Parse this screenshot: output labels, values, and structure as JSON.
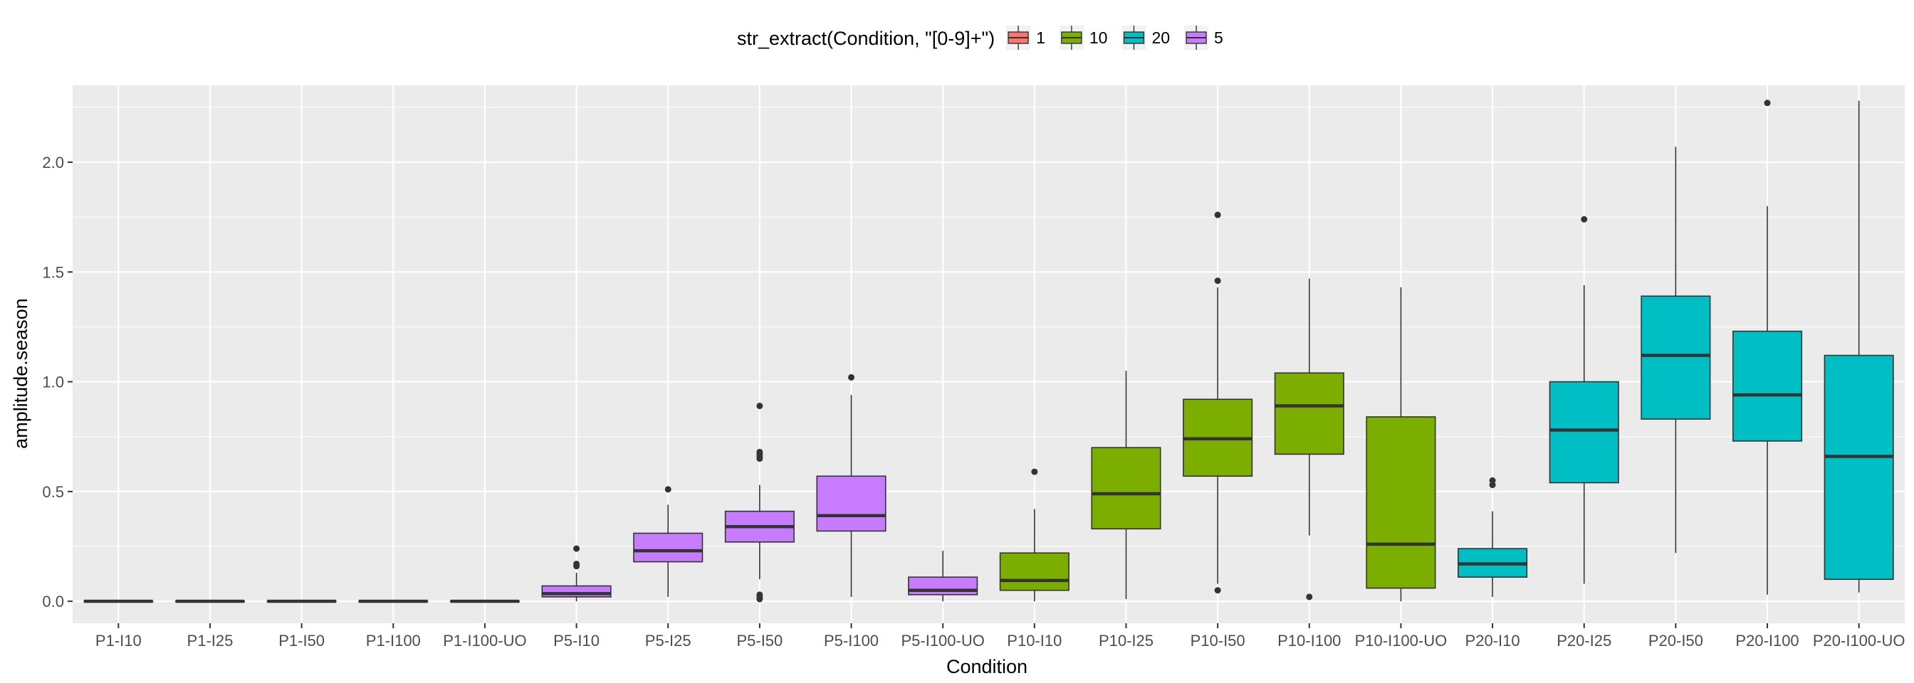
{
  "chart_data": {
    "type": "boxplot",
    "xlabel": "Condition",
    "ylabel": "amplitude.season",
    "ylim": [
      -0.1,
      2.35
    ],
    "yticks": [
      "0.0",
      "0.5",
      "1.0",
      "1.5",
      "2.0"
    ],
    "legend": {
      "title": "str_extract(Condition, \"[0-9]+\")",
      "position": "top",
      "entries": [
        {
          "label": "1",
          "color": "#F8766D"
        },
        {
          "label": "10",
          "color": "#7CAE00"
        },
        {
          "label": "20",
          "color": "#00BFC4"
        },
        {
          "label": "5",
          "color": "#C77CFF"
        }
      ]
    },
    "colors": {
      "panel_bg": "#EBEBEB",
      "grid": "#FFFFFF",
      "box_outline": "#333333",
      "median": "#333333"
    },
    "categories": [
      "P1-I10",
      "P1-I25",
      "P1-I50",
      "P1-I100",
      "P1-I100-UO",
      "P5-I10",
      "P5-I25",
      "P5-I50",
      "P5-I100",
      "P5-I100-UO",
      "P10-I10",
      "P10-I25",
      "P10-I50",
      "P10-I100",
      "P10-I100-UO",
      "P20-I10",
      "P20-I25",
      "P20-I50",
      "P20-I100",
      "P20-I100-UO"
    ],
    "boxes": [
      {
        "group": "1",
        "q1": 0.0,
        "median": 0.0,
        "q3": 0.0,
        "whisker_low": 0.0,
        "whisker_high": 0.0,
        "outliers": []
      },
      {
        "group": "1",
        "q1": 0.0,
        "median": 0.0,
        "q3": 0.0,
        "whisker_low": 0.0,
        "whisker_high": 0.0,
        "outliers": []
      },
      {
        "group": "1",
        "q1": 0.0,
        "median": 0.0,
        "q3": 0.0,
        "whisker_low": 0.0,
        "whisker_high": 0.0,
        "outliers": []
      },
      {
        "group": "1",
        "q1": 0.0,
        "median": 0.0,
        "q3": 0.0,
        "whisker_low": 0.0,
        "whisker_high": 0.0,
        "outliers": []
      },
      {
        "group": "1",
        "q1": 0.0,
        "median": 0.0,
        "q3": 0.0,
        "whisker_low": 0.0,
        "whisker_high": 0.0,
        "outliers": []
      },
      {
        "group": "5",
        "q1": 0.02,
        "median": 0.035,
        "q3": 0.07,
        "whisker_low": 0.0,
        "whisker_high": 0.13,
        "outliers": [
          0.16,
          0.17,
          0.24
        ]
      },
      {
        "group": "5",
        "q1": 0.18,
        "median": 0.23,
        "q3": 0.31,
        "whisker_low": 0.02,
        "whisker_high": 0.44,
        "outliers": [
          0.51
        ]
      },
      {
        "group": "5",
        "q1": 0.27,
        "median": 0.34,
        "q3": 0.41,
        "whisker_low": 0.1,
        "whisker_high": 0.53,
        "outliers": [
          0.01,
          0.02,
          0.03,
          0.65,
          0.66,
          0.67,
          0.68,
          0.89
        ]
      },
      {
        "group": "5",
        "q1": 0.32,
        "median": 0.39,
        "q3": 0.57,
        "whisker_low": 0.02,
        "whisker_high": 0.94,
        "outliers": [
          1.02
        ]
      },
      {
        "group": "5",
        "q1": 0.03,
        "median": 0.05,
        "q3": 0.11,
        "whisker_low": 0.0,
        "whisker_high": 0.23,
        "outliers": []
      },
      {
        "group": "10",
        "q1": 0.05,
        "median": 0.095,
        "q3": 0.22,
        "whisker_low": 0.0,
        "whisker_high": 0.42,
        "outliers": [
          0.59
        ]
      },
      {
        "group": "10",
        "q1": 0.33,
        "median": 0.49,
        "q3": 0.7,
        "whisker_low": 0.01,
        "whisker_high": 1.05,
        "outliers": []
      },
      {
        "group": "10",
        "q1": 0.57,
        "median": 0.74,
        "q3": 0.92,
        "whisker_low": 0.08,
        "whisker_high": 1.43,
        "outliers": [
          0.05,
          1.46,
          1.76
        ]
      },
      {
        "group": "10",
        "q1": 0.67,
        "median": 0.89,
        "q3": 1.04,
        "whisker_low": 0.3,
        "whisker_high": 1.47,
        "outliers": [
          0.02
        ]
      },
      {
        "group": "10",
        "q1": 0.06,
        "median": 0.26,
        "q3": 0.84,
        "whisker_low": 0.0,
        "whisker_high": 1.43,
        "outliers": []
      },
      {
        "group": "20",
        "q1": 0.11,
        "median": 0.17,
        "q3": 0.24,
        "whisker_low": 0.02,
        "whisker_high": 0.41,
        "outliers": [
          0.53,
          0.55
        ]
      },
      {
        "group": "20",
        "q1": 0.54,
        "median": 0.78,
        "q3": 1.0,
        "whisker_low": 0.08,
        "whisker_high": 1.44,
        "outliers": [
          1.74
        ]
      },
      {
        "group": "20",
        "q1": 0.83,
        "median": 1.12,
        "q3": 1.39,
        "whisker_low": 0.22,
        "whisker_high": 2.07,
        "outliers": []
      },
      {
        "group": "20",
        "q1": 0.73,
        "median": 0.94,
        "q3": 1.23,
        "whisker_low": 0.03,
        "whisker_high": 1.8,
        "outliers": [
          2.27
        ]
      },
      {
        "group": "20",
        "q1": 0.1,
        "median": 0.66,
        "q3": 1.12,
        "whisker_low": 0.04,
        "whisker_high": 2.28,
        "outliers": []
      }
    ]
  }
}
